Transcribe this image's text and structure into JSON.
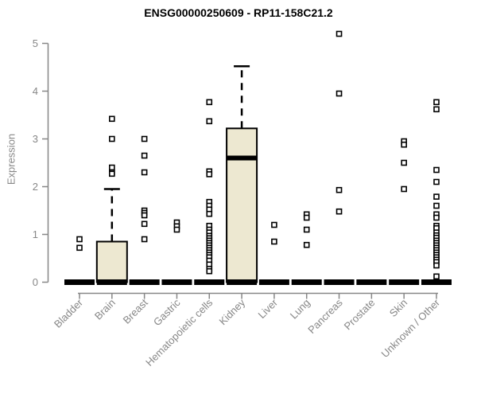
{
  "page": {
    "background": "#ffffff"
  },
  "chart_data": {
    "type": "boxplot",
    "title": "ENSG00000250609 - RP11-158C21.2",
    "ylabel": "Expression",
    "ylim": [
      0,
      5
    ],
    "yticks": [
      0,
      1,
      2,
      3,
      4,
      5
    ],
    "grid": false,
    "categories": [
      "Bladder",
      "Brain",
      "Breast",
      "Gastric",
      "Hematopoietic cells",
      "Kidney",
      "Liver",
      "Lung",
      "Pancreas",
      "Prostate",
      "Skin",
      "Unknown / Other"
    ],
    "boxes": [
      {
        "category": "Bladder",
        "q1": 0,
        "median": 0,
        "q3": 0,
        "whisker_low": 0,
        "whisker_high": 0,
        "outliers": [
          0.9,
          0.72
        ]
      },
      {
        "category": "Brain",
        "q1": 0,
        "median": 0,
        "q3": 0.85,
        "whisker_low": 0,
        "whisker_high": 1.95,
        "outliers": [
          3.42,
          3.0,
          2.4,
          2.3,
          2.27
        ]
      },
      {
        "category": "Breast",
        "q1": 0,
        "median": 0,
        "q3": 0,
        "whisker_low": 0,
        "whisker_high": 0,
        "outliers": [
          3.0,
          2.65,
          2.3,
          1.5,
          1.45,
          1.4,
          1.22,
          0.9
        ]
      },
      {
        "category": "Gastric",
        "q1": 0,
        "median": 0,
        "q3": 0,
        "whisker_low": 0,
        "whisker_high": 0,
        "outliers": [
          1.25,
          1.17,
          1.1
        ]
      },
      {
        "category": "Hematopoietic cells",
        "q1": 0,
        "median": 0,
        "q3": 0,
        "whisker_low": 0,
        "whisker_high": 0,
        "outliers": [
          3.77,
          3.37,
          2.32,
          2.26,
          1.68,
          1.6,
          1.52,
          1.43,
          1.18,
          1.1,
          1.04,
          0.97,
          0.92,
          0.87,
          0.82,
          0.77,
          0.72,
          0.67,
          0.62,
          0.57,
          0.52,
          0.45,
          0.37,
          0.28,
          0.23
        ]
      },
      {
        "category": "Kidney",
        "q1": 0,
        "median": 2.6,
        "q3": 3.22,
        "whisker_low": 0,
        "whisker_high": 4.52,
        "outliers": []
      },
      {
        "category": "Liver",
        "q1": 0,
        "median": 0,
        "q3": 0,
        "whisker_low": 0,
        "whisker_high": 0,
        "outliers": [
          1.2,
          0.85
        ]
      },
      {
        "category": "Lung",
        "q1": 0,
        "median": 0,
        "q3": 0,
        "whisker_low": 0,
        "whisker_high": 0,
        "outliers": [
          1.42,
          1.35,
          1.1,
          0.78
        ]
      },
      {
        "category": "Pancreas",
        "q1": 0,
        "median": 0,
        "q3": 0,
        "whisker_low": 0,
        "whisker_high": 0,
        "outliers": [
          5.2,
          3.95,
          1.93,
          1.48
        ]
      },
      {
        "category": "Prostate",
        "q1": 0,
        "median": 0,
        "q3": 0,
        "whisker_low": 0,
        "whisker_high": 0,
        "outliers": []
      },
      {
        "category": "Skin",
        "q1": 0,
        "median": 0,
        "q3": 0,
        "whisker_low": 0,
        "whisker_high": 0,
        "outliers": [
          2.95,
          2.88,
          2.5,
          1.95
        ]
      },
      {
        "category": "Unknown / Other",
        "q1": 0,
        "median": 0,
        "q3": 0,
        "whisker_low": 0,
        "whisker_high": 0,
        "outliers": [
          3.77,
          3.62,
          2.35,
          2.1,
          1.79,
          1.6,
          1.42,
          1.35,
          1.18,
          1.13,
          1.04,
          0.98,
          0.93,
          0.87,
          0.82,
          0.77,
          0.72,
          0.67,
          0.62,
          0.57,
          0.52,
          0.47,
          0.42,
          0.35,
          0.12
        ]
      }
    ],
    "style": {
      "box_fill": "#EDE8D1",
      "box_stroke": "#000000",
      "median_color": "#000000",
      "zero_bar_color": "#000000",
      "outlier_fill": "#ffffff",
      "outlier_stroke": "#000000",
      "axis_color": "#878787",
      "label_color": "#878787",
      "title_color": "#000000"
    }
  }
}
